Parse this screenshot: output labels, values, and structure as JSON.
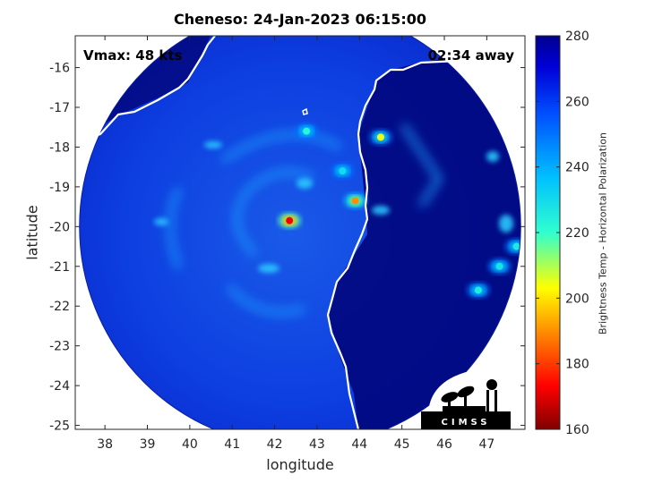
{
  "title": "Cheneso: 24-Jan-2023 06:15:00",
  "annotations": {
    "vmax": "Vmax: 48 kts",
    "time_away": "02:34 away"
  },
  "logo_text": "CIMSS",
  "colors": {
    "land": "#02087f",
    "frame": "#262626",
    "coast": "#ffffff"
  },
  "chart_data": {
    "type": "heatmap",
    "title": "Cheneso: 24-Jan-2023 06:15:00",
    "xlabel": "longitude",
    "ylabel": "latitude",
    "xlim": [
      37.3,
      47.9
    ],
    "ylim": [
      -25.1,
      -15.2
    ],
    "xticks": [
      "38",
      "39",
      "40",
      "41",
      "42",
      "43",
      "44",
      "45",
      "46",
      "47"
    ],
    "yticks": [
      "-16",
      "-17",
      "-18",
      "-19",
      "-20",
      "-21",
      "-22",
      "-23",
      "-24",
      "-25"
    ],
    "xtick_values": [
      38,
      39,
      40,
      41,
      42,
      43,
      44,
      45,
      46,
      47
    ],
    "ytick_values": [
      -16,
      -17,
      -18,
      -19,
      -20,
      -21,
      -22,
      -23,
      -24,
      -25
    ],
    "colorbar": {
      "label": "Brightness Temp - Horizontal Polarization",
      "range": [
        160,
        280
      ],
      "ticks": [
        "280",
        "260",
        "240",
        "220",
        "200",
        "180",
        "160"
      ],
      "tick_values": [
        280,
        260,
        240,
        220,
        200,
        180,
        160
      ]
    },
    "swath": {
      "center": [
        42.6,
        -20.0
      ],
      "radius_deg": 5.2
    },
    "storm_center": [
      42.35,
      -19.85
    ],
    "cold_features": [
      {
        "lon": 42.35,
        "lat": -19.85,
        "tb": 172
      },
      {
        "lon": 43.9,
        "lat": -19.35,
        "tb": 190
      },
      {
        "lon": 44.5,
        "lat": -17.75,
        "tb": 205
      },
      {
        "lon": 42.75,
        "lat": -17.6,
        "tb": 222
      },
      {
        "lon": 46.8,
        "lat": -21.6,
        "tb": 225
      },
      {
        "lon": 47.3,
        "lat": -21.0,
        "tb": 228
      },
      {
        "lon": 47.7,
        "lat": -20.5,
        "tb": 226
      },
      {
        "lon": 43.6,
        "lat": -18.6,
        "tb": 230
      }
    ]
  }
}
